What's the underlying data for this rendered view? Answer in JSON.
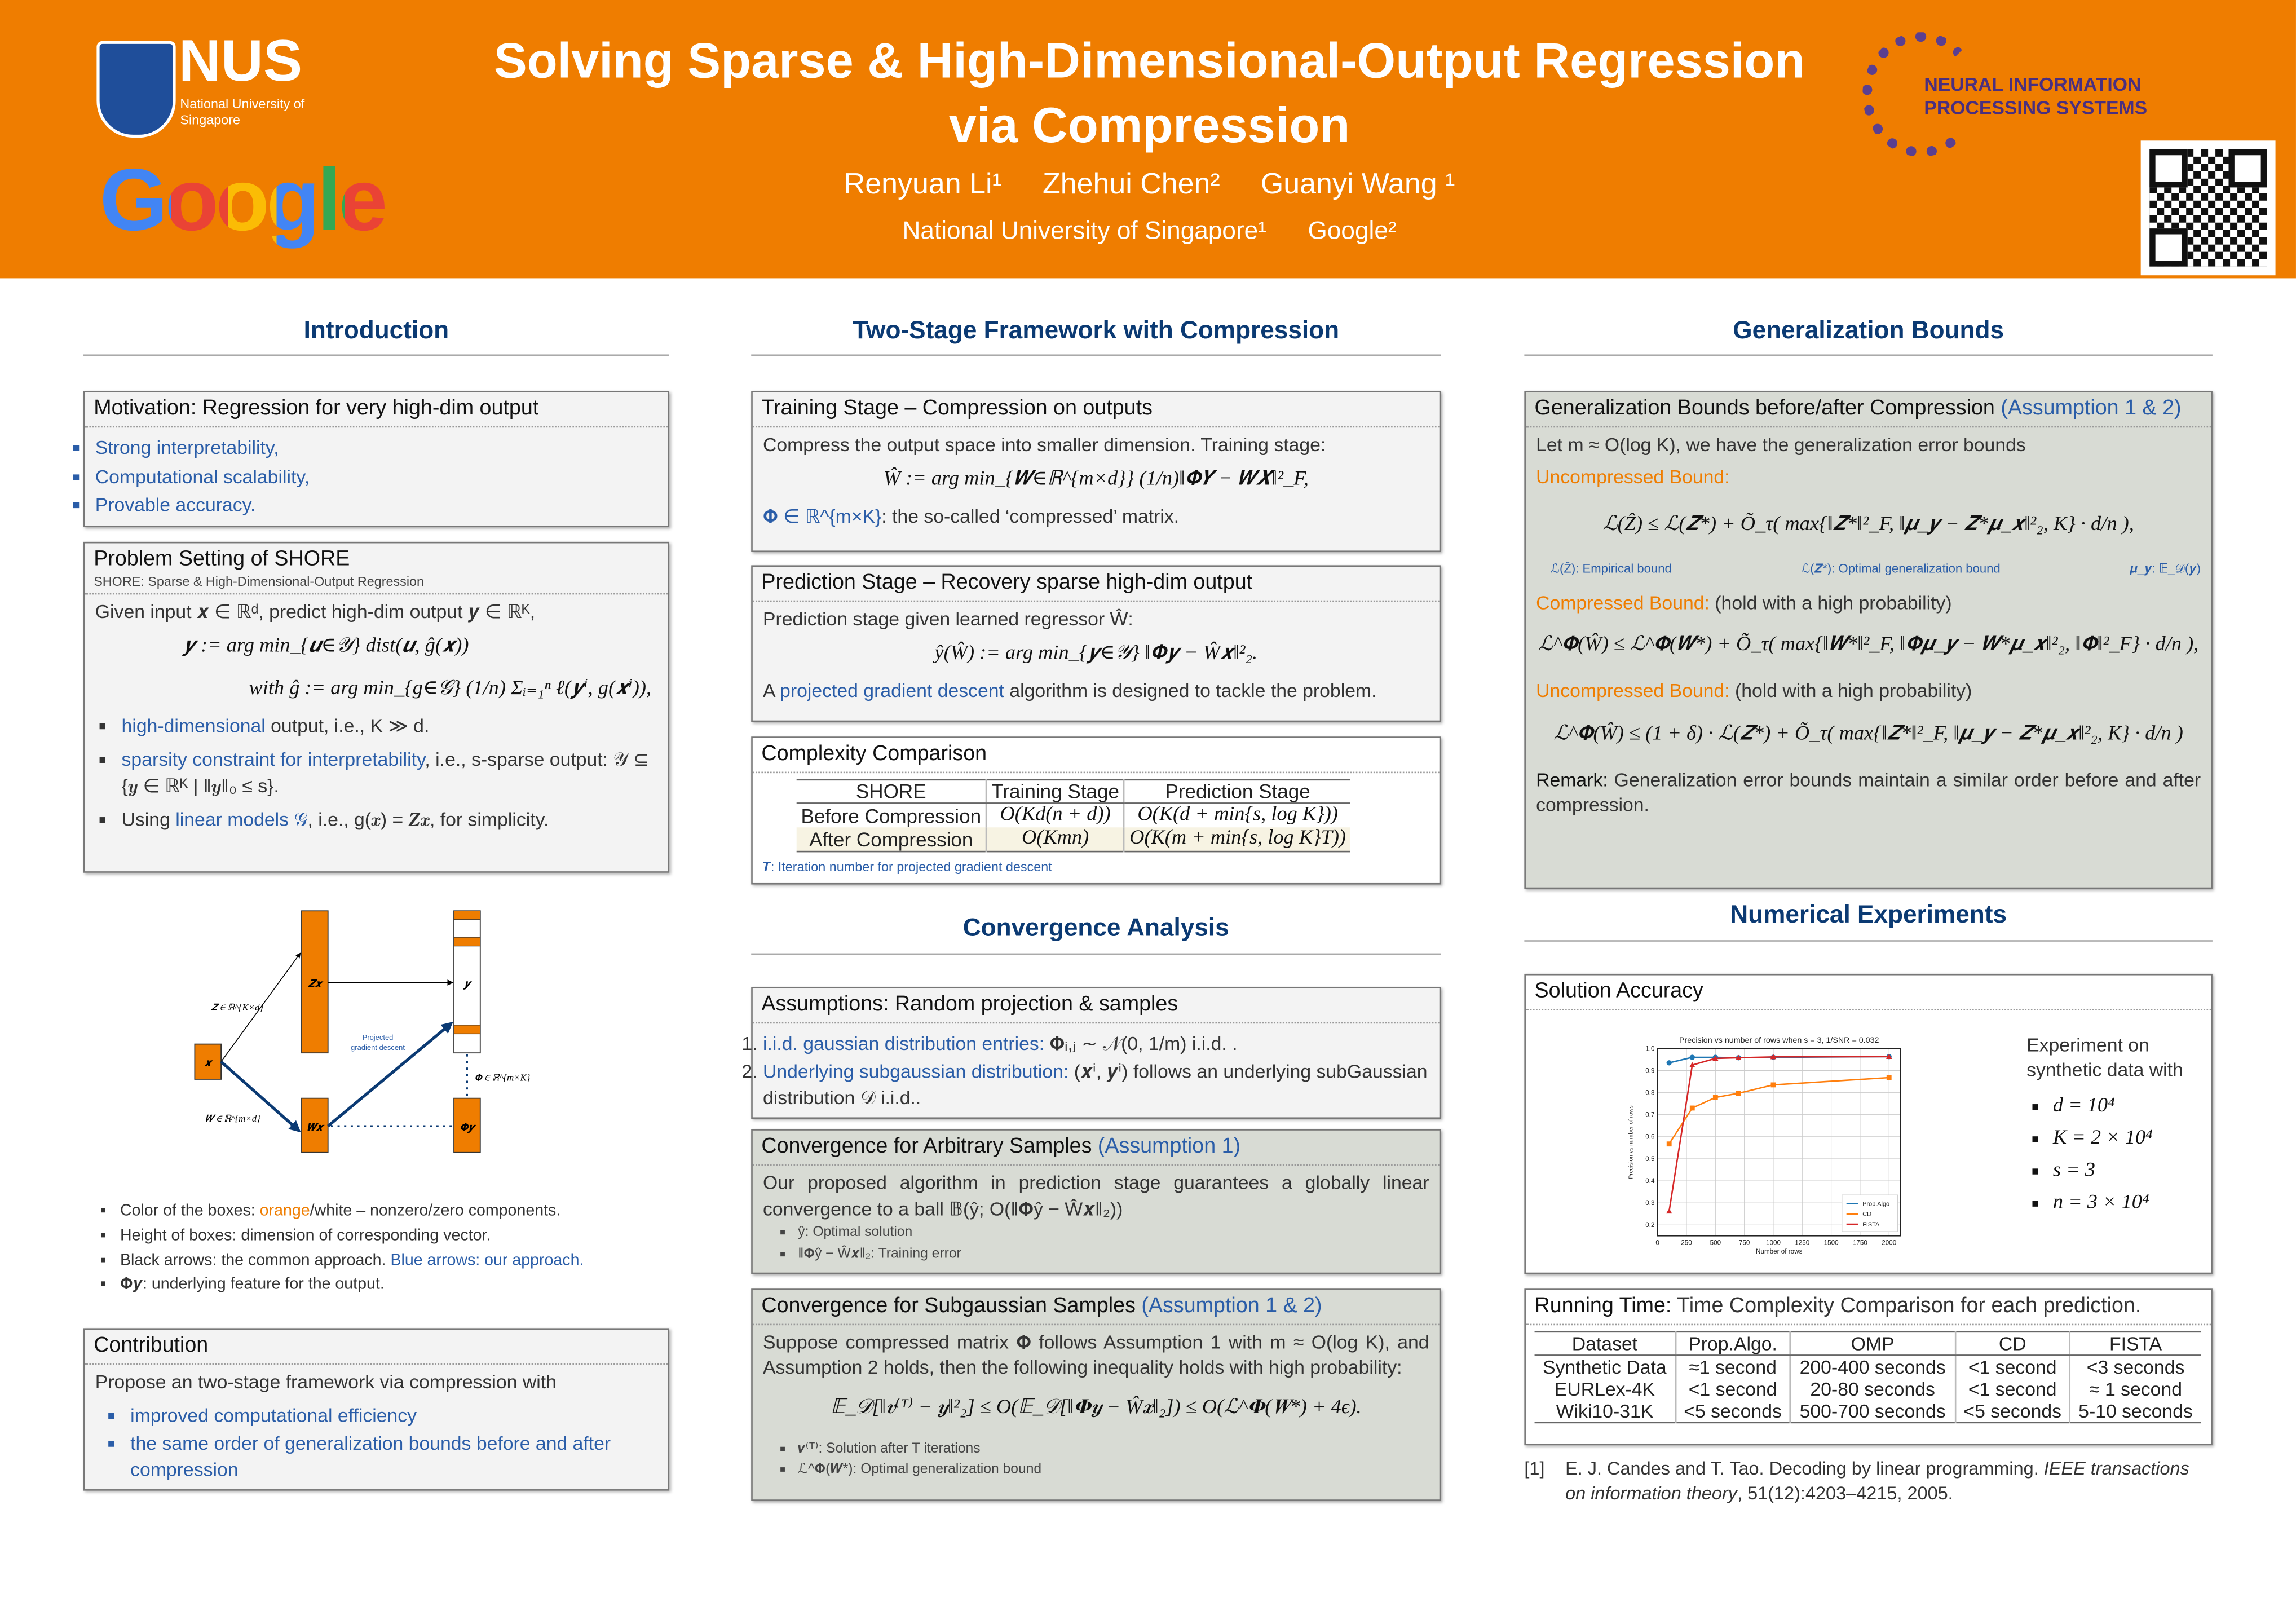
{
  "header": {
    "title_line1": "Solving Sparse & High-Dimensional-Output Regression",
    "title_line2": "via Compression",
    "authors": [
      "Renyuan Li¹",
      "Zhehui Chen²",
      "Guanyi Wang ¹"
    ],
    "affiliations": [
      "National University of Singapore¹",
      "Google²"
    ],
    "nus_logo": {
      "text": "NUS",
      "subtitle": "National University of Singapore"
    },
    "google_logo": "Google",
    "neurips_logo": {
      "line1": "NEURAL INFORMATION",
      "line2": "PROCESSING SYSTEMS"
    },
    "qr_icon": "qr-code-icon",
    "brand_color": "#EF7D00"
  },
  "introduction": {
    "heading": "Introduction",
    "motivation": {
      "title": "Motivation: Regression for very high-dim output",
      "items": [
        "Strong interpretability,",
        "Computational scalability,",
        "Provable accuracy."
      ]
    },
    "problem": {
      "title": "Problem Setting of SHORE",
      "subtitle": "SHORE: Sparse & High-Dimensional-Output Regression",
      "given": "Given input 𝒙 ∈ ℝᵈ, predict high-dim output 𝒚 ∈ ℝᴷ,",
      "eq1": "𝒚 := arg min_{𝒖∈𝒴} dist(𝒖, ĝ(𝒙))",
      "eq2": "with  ĝ := arg min_{g∈𝒢} (1/n) Σᵢ₌₁ⁿ ℓ(𝒚ⁱ, g(𝒙ⁱ)),",
      "b1_hl": "high-dimensional",
      "b1_rest": " output, i.e., K ≫ d.",
      "b2_hl": "sparsity constraint for interpretability",
      "b2_rest": ", i.e., s-sparse output: 𝒴 ⊆ {𝒚 ∈ ℝᴷ | ‖𝒚‖₀ ≤ s}.",
      "b3_pre": "Using ",
      "b3_hl": "linear models 𝒢",
      "b3_rest": ", i.e., g(𝒙) = 𝒁𝒙, for simplicity."
    },
    "diagram": {
      "x": "𝒙",
      "zx": "𝒁𝒙",
      "wx": "𝑾𝒙",
      "y": "𝒚",
      "phiy": "𝚽𝒚",
      "z_label": "𝒁 ∈ ℝ^{K×d}",
      "w_label": "𝑾 ∈ ℝ^{m×d}",
      "phi_label": "𝚽 ∈ ℝ^{m×K}",
      "pgd_line1": "Projected",
      "pgd_line2": "gradient descent"
    },
    "legend": {
      "l1_pre": "Color of the boxes: ",
      "l1_hl": "orange",
      "l1_rest": "/white – nonzero/zero components.",
      "l2": "Height of boxes: dimension of corresponding vector.",
      "l3_pre": "Black arrows: the common approach. ",
      "l3_hl": "Blue arrows: our approach.",
      "l4": "𝚽𝒚: underlying feature for the output."
    },
    "contribution": {
      "title": "Contribution",
      "text": "Propose an two-stage framework via compression with",
      "items": [
        "improved computational efficiency",
        "the same order of generalization bounds before and after compression"
      ]
    }
  },
  "framework": {
    "heading": "Two-Stage Framework with Compression",
    "training": {
      "title": "Training Stage – Compression on outputs",
      "text": "Compress the output space into smaller dimension. Training stage:",
      "eq": "Ŵ := arg min_{𝑾∈ℝ^{m×d}} (1/n)‖𝚽𝒀 − 𝑾𝑿‖²_F,",
      "note_hl": "𝚽 ∈ ℝ^{m×K}",
      "note_rest": ": the so-called ‘compressed’ matrix."
    },
    "prediction": {
      "title": "Prediction Stage – Recovery sparse high-dim output",
      "text": "Prediction stage given learned regressor Ŵ:",
      "eq": "ŷ(Ŵ) := arg min_{𝒚∈𝒴} ‖𝚽𝒚 − Ŵ𝒙‖²₂.",
      "t_pre": "A ",
      "t_hl": "projected gradient descent",
      "t_rest": " algorithm is designed to tackle the problem."
    },
    "complexity": {
      "title": "Complexity Comparison",
      "headers": [
        "SHORE",
        "Training Stage",
        "Prediction Stage"
      ],
      "rows": [
        [
          "Before Compression",
          "O(Kd(n + d))",
          "O(K(d + min{s, log K}))"
        ],
        [
          "After Compression",
          "O(Kmn)",
          "O(K(m + min{s, log K}T))"
        ]
      ],
      "note": "𝑻: Iteration number for projected gradient descent"
    }
  },
  "convergence": {
    "heading": "Convergence Analysis",
    "assumptions": {
      "title": "Assumptions: Random projection & samples",
      "i1_hl": "i.i.d. gaussian distribution entries:",
      "i1_rest": " 𝚽ᵢ,ⱼ ∼ 𝒩(0, 1/m) i.i.d. .",
      "i2_hl": "Underlying subgaussian distribution:",
      "i2_rest": " (𝒙ⁱ, 𝒚ⁱ) follows an underlying subGaussian distribution 𝒟 i.i.d.."
    },
    "arbitrary": {
      "title": "Convergence for Arbitrary Samples ",
      "title_hl": "(Assumption 1)",
      "text": "Our proposed algorithm in prediction stage guarantees a globally linear convergence to a ball 𝔹(ŷ; O(‖𝚽ŷ − Ŵ𝒙‖₂))",
      "b1": "ŷ: Optimal solution",
      "b2": "‖𝚽ŷ − Ŵ𝒙‖₂: Training error"
    },
    "subgaussian": {
      "title": "Convergence for Subgaussian Samples ",
      "title_hl": "(Assumption 1 & 2)",
      "text": "Suppose compressed matrix 𝚽 follows Assumption 1 with m ≈ O(log K), and Assumption 2 holds, then the following inequality holds with high probability:",
      "eq": "𝔼_𝒟[‖𝒗⁽ᵀ⁾ − 𝒚‖²₂] ≤ O(𝔼_𝒟[‖𝚽𝒚 − Ŵ𝒙‖₂]) ≤ O(ℒ^𝚽(𝑾*) + 4ϵ).",
      "b1": "𝒗⁽ᵀ⁾: Solution after T iterations",
      "b2": "ℒ^𝚽(𝑾*): Optimal generalization bound"
    }
  },
  "generalization": {
    "heading": "Generalization Bounds",
    "title": "Generalization Bounds before/after Compression ",
    "title_hl": "(Assumption 1 & 2)",
    "intro": "Let m ≈ O(log K), we have the generalization error bounds",
    "unc_label": "Uncompressed Bound:",
    "eq1": "ℒ(Ẑ) ≤ ℒ(𝒁*) + Õ_τ( max{‖𝒁*‖²_F, ‖𝝁_𝒚 − 𝒁*𝝁_𝒙‖²₂, K} · d/n ),",
    "defs": [
      "ℒ(Ẑ): Empirical bound",
      "ℒ(𝒁*): Optimal generalization bound",
      "𝝁_𝒚: 𝔼_𝒟(𝒚)"
    ],
    "comp_label": "Compressed Bound:",
    "comp_rest": " (hold with a high probability)",
    "eq2": "ℒ^𝚽(Ŵ) ≤ ℒ^𝚽(𝑾*) + Õ_τ( max{‖𝑾*‖²_F, ‖𝚽𝝁_𝒚 − 𝑾*𝝁_𝒙‖²₂, ‖𝚽‖²_F} · d/n ),",
    "unc2_label": "Uncompressed Bound:",
    "unc2_rest": " (hold with a high probability)",
    "eq3": "ℒ^𝚽(Ŵ) ≤ (1 + δ) · ℒ(𝒁*) + Õ_τ( max{‖𝒁*‖²_F, ‖𝝁_𝒚 − 𝒁*𝝁_𝒙‖²₂, K} · d/n )",
    "remark_label": "Remark:",
    "remark": " Generalization error bounds maintain a similar order before and after compression."
  },
  "experiments": {
    "heading": "Numerical Experiments",
    "accuracy": {
      "title": "Solution Accuracy",
      "side_text": "Experiment on synthetic data with",
      "params": [
        "d = 10⁴",
        "K = 2 × 10⁴",
        "s = 3",
        "n = 3 × 10⁴"
      ]
    },
    "running": {
      "title": "Running Time:",
      "title_rest": " Time Complexity Comparison for each prediction.",
      "headers": [
        "Dataset",
        "Prop.Algo.",
        "OMP",
        "CD",
        "FISTA"
      ],
      "rows": [
        [
          "Synthetic Data",
          "≈1 second",
          "200-400 seconds",
          "<1 second",
          "<3 seconds"
        ],
        [
          "EURLex-4K",
          "<1 second",
          "20-80 seconds",
          "<1 second",
          "≈ 1 second"
        ],
        [
          "Wiki10-31K",
          "<5 seconds",
          "500-700 seconds",
          "<5 seconds",
          "5-10 seconds"
        ]
      ]
    },
    "reference": {
      "num": "[1]",
      "text": "E. J. Candes and T. Tao. Decoding by linear programming. ",
      "journal": "IEEE transactions on information theory",
      "rest": ", 51(12):4203–4215, 2005."
    }
  },
  "chart_data": {
    "type": "line",
    "title": "Precision vs number of rows  when s = 3, 1/SNR = 0.032",
    "xlabel": "Number of rows",
    "ylabel": "Precision vs number of rows",
    "xlim": [
      0,
      2100
    ],
    "ylim": [
      0.15,
      1.0
    ],
    "xticks": [
      0,
      250,
      500,
      750,
      1000,
      1250,
      1500,
      1750,
      2000
    ],
    "yticks": [
      0.2,
      0.3,
      0.4,
      0.5,
      0.6,
      0.7,
      0.8,
      0.9,
      1.0
    ],
    "grid": true,
    "legend": "bottom-right",
    "x": [
      100,
      300,
      500,
      700,
      1000,
      2000
    ],
    "series": [
      {
        "name": "Prop.Algo",
        "color": "#1f77b4",
        "marker": "circle",
        "values": [
          0.935,
          0.96,
          0.96,
          0.958,
          0.96,
          0.963
        ]
      },
      {
        "name": "CD",
        "color": "#ff7f0e",
        "marker": "square",
        "values": [
          0.567,
          0.73,
          0.778,
          0.797,
          0.835,
          0.868
        ]
      },
      {
        "name": "FISTA",
        "color": "#d62728",
        "marker": "triangle",
        "values": [
          0.262,
          0.925,
          0.955,
          0.958,
          0.962,
          0.963
        ]
      }
    ]
  }
}
